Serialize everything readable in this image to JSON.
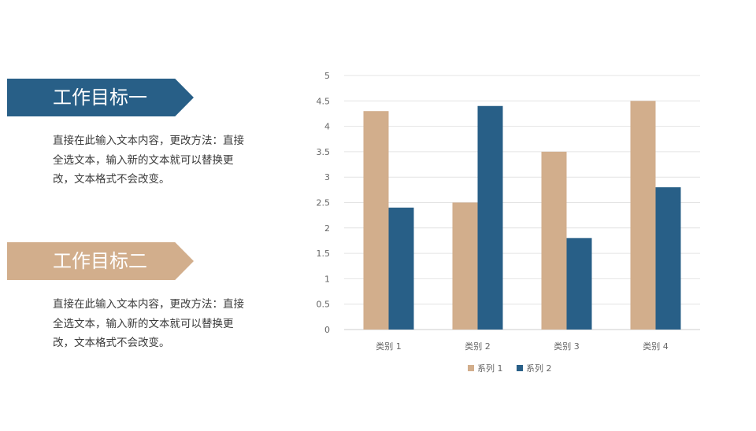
{
  "sections": [
    {
      "title": "工作目标一",
      "color": "#285F87",
      "description": "直接在此输入文本内容，更改方法：直接全选文本，输入新的文本就可以替换更改，文本格式不会改变。"
    },
    {
      "title": "工作目标二",
      "color": "#D2AE8C",
      "description": "直接在此输入文本内容，更改方法：直接全选文本，输入新的文本就可以替换更改，文本格式不会改变。"
    }
  ],
  "chart_data": {
    "type": "bar",
    "title": "",
    "xlabel": "",
    "ylabel": "",
    "categories": [
      "类别 1",
      "类别 2",
      "类别 3",
      "类别 4"
    ],
    "series": [
      {
        "name": "系列 1",
        "color": "#D2AE8C",
        "values": [
          4.3,
          2.5,
          3.5,
          4.5
        ]
      },
      {
        "name": "系列 2",
        "color": "#285F87",
        "values": [
          2.4,
          4.4,
          1.8,
          2.8
        ]
      }
    ],
    "ylim": [
      0,
      5
    ],
    "yticks": [
      "0",
      "0.5",
      "1",
      "1.5",
      "2",
      "2.5",
      "3",
      "3.5",
      "4",
      "4.5",
      "5"
    ],
    "grid": true,
    "legend": "bottom"
  }
}
